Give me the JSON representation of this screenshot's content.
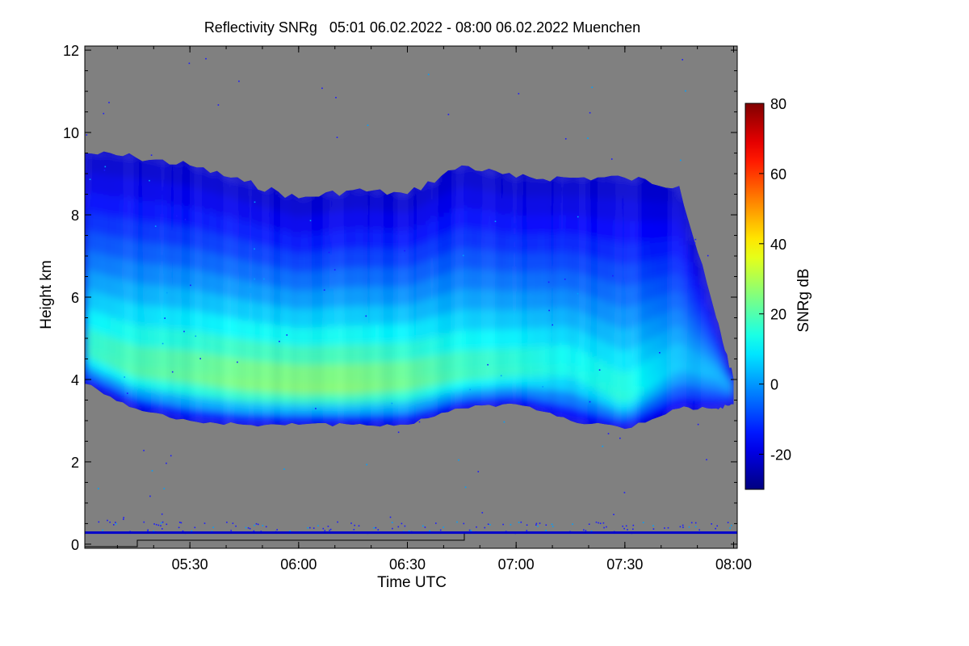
{
  "chart_data": {
    "type": "heatmap",
    "title": "Reflectivity SNRg   05:01 06.02.2022 - 08:00 06.02.2022 Muenchen",
    "xlabel": "Time UTC",
    "ylabel": "Height km",
    "x_ticks": [
      "05:30",
      "06:00",
      "06:30",
      "07:00",
      "07:30",
      "08:00"
    ],
    "x_tick_hours": [
      5.5,
      6.0,
      6.5,
      7.0,
      7.5,
      8.0
    ],
    "xlim_hours": [
      5.0167,
      8.0167
    ],
    "y_ticks": [
      "0",
      "2",
      "4",
      "6",
      "8",
      "10",
      "12"
    ],
    "ylim": [
      -0.1,
      12.1
    ],
    "colorbar": {
      "label": "SNRg dB",
      "range": [
        -30,
        80
      ],
      "ticks": [
        "-20",
        "0",
        "20",
        "40",
        "60",
        "80"
      ],
      "tick_values": [
        -20,
        0,
        20,
        40,
        60,
        80
      ],
      "colormap": "jet"
    },
    "background_color": "#808080",
    "cloud": {
      "description_values_db": {
        "top_edge": -22,
        "core_max": 28
      },
      "time_hours": [
        5.017,
        5.25,
        5.5,
        5.75,
        6.0,
        6.25,
        6.5,
        6.75,
        7.0,
        7.25,
        7.5,
        7.75,
        7.92,
        8.0
      ],
      "top_km": [
        9.5,
        9.4,
        9.2,
        8.8,
        8.4,
        8.6,
        8.5,
        9.2,
        8.9,
        8.9,
        8.9,
        8.7,
        5.5,
        4.0
      ],
      "base_km": [
        3.9,
        3.3,
        3.0,
        2.9,
        2.9,
        2.9,
        2.9,
        3.3,
        3.4,
        3.0,
        2.8,
        3.3,
        3.3,
        3.4
      ],
      "core_height_km": [
        4.8,
        4.3,
        4.2,
        4.0,
        3.9,
        3.9,
        4.0,
        4.2,
        4.3,
        4.4,
        3.6,
        4.5,
        4.2,
        3.8
      ],
      "core_db": [
        18,
        22,
        24,
        27,
        28,
        28,
        25,
        20,
        18,
        14,
        17,
        6,
        4,
        2
      ]
    },
    "ground_clutter": {
      "height_km": 0.28,
      "db": -22
    }
  }
}
